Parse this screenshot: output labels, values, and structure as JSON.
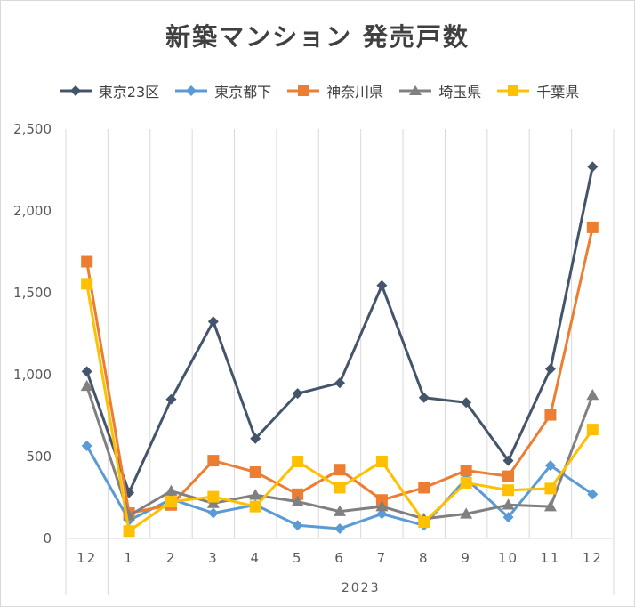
{
  "chart_data": {
    "type": "line",
    "title": "新築マンション 発売戸数",
    "categories": [
      "12",
      "1",
      "2",
      "3",
      "4",
      "5",
      "6",
      "7",
      "8",
      "9",
      "10",
      "11",
      "12"
    ],
    "group_label": "2023",
    "ylim": [
      0,
      2500
    ],
    "yticks": [
      0,
      500,
      1000,
      1500,
      2000,
      2500
    ],
    "ytick_labels": [
      "0",
      "500",
      "1,000",
      "1,500",
      "2,000",
      "2,500"
    ],
    "grid": "vertical",
    "legend_position": "top",
    "series": [
      {
        "name": "東京23区",
        "color": "#44546a",
        "marker": "diamond",
        "values": [
          1020,
          280,
          850,
          1325,
          610,
          885,
          950,
          1545,
          860,
          830,
          475,
          1035,
          2270
        ]
      },
      {
        "name": "東京都下",
        "color": "#5b9bd5",
        "marker": "diamond",
        "values": [
          565,
          110,
          240,
          155,
          205,
          80,
          60,
          150,
          80,
          365,
          130,
          445,
          270
        ]
      },
      {
        "name": "神奈川県",
        "color": "#ed7d31",
        "marker": "square",
        "values": [
          1690,
          155,
          205,
          475,
          405,
          270,
          420,
          235,
          310,
          415,
          380,
          755,
          1900
        ]
      },
      {
        "name": "埼玉県",
        "color": "#808080",
        "marker": "triangle",
        "values": [
          930,
          140,
          290,
          215,
          265,
          225,
          165,
          195,
          120,
          150,
          205,
          195,
          875
        ]
      },
      {
        "name": "千葉県",
        "color": "#ffc000",
        "marker": "square",
        "values": [
          1555,
          45,
          225,
          255,
          195,
          470,
          310,
          470,
          100,
          340,
          295,
          305,
          665
        ]
      }
    ]
  }
}
